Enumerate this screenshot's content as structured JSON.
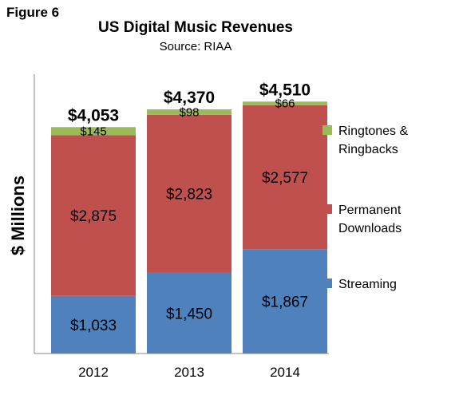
{
  "figure_label": "Figure 6",
  "chart_data": {
    "type": "bar",
    "stacked": true,
    "title": "US Digital Music Revenues",
    "subtitle": "Source: RIAA",
    "xlabel": "",
    "ylabel": "$ Millions",
    "categories": [
      "2012",
      "2013",
      "2014"
    ],
    "series": [
      {
        "name": "Streaming",
        "color": "#4F81BD",
        "values": [
          1033,
          1450,
          1867
        ],
        "labels": [
          "$1,033",
          "$1,450",
          "$1,867"
        ]
      },
      {
        "name": "Permanent Downloads",
        "color": "#C0504D",
        "values": [
          2875,
          2823,
          2577
        ],
        "labels": [
          "$2,875",
          "$2,823",
          "$2,577"
        ]
      },
      {
        "name": "Ringtones & Ringbacks",
        "color": "#9BBB59",
        "values": [
          145,
          98,
          66
        ],
        "labels": [
          "$145",
          "$98",
          "$66"
        ]
      }
    ],
    "totals": [
      4053,
      4370,
      4510
    ],
    "total_labels": [
      "$4,053",
      "$4,370",
      "$4,510"
    ],
    "ylim": [
      0,
      5000
    ],
    "grid": false,
    "legend_position": "right",
    "legend_lines": [
      [
        "Ringtones &",
        "Ringbacks"
      ],
      [
        "Permanent",
        "Downloads"
      ],
      [
        "Streaming"
      ]
    ]
  }
}
